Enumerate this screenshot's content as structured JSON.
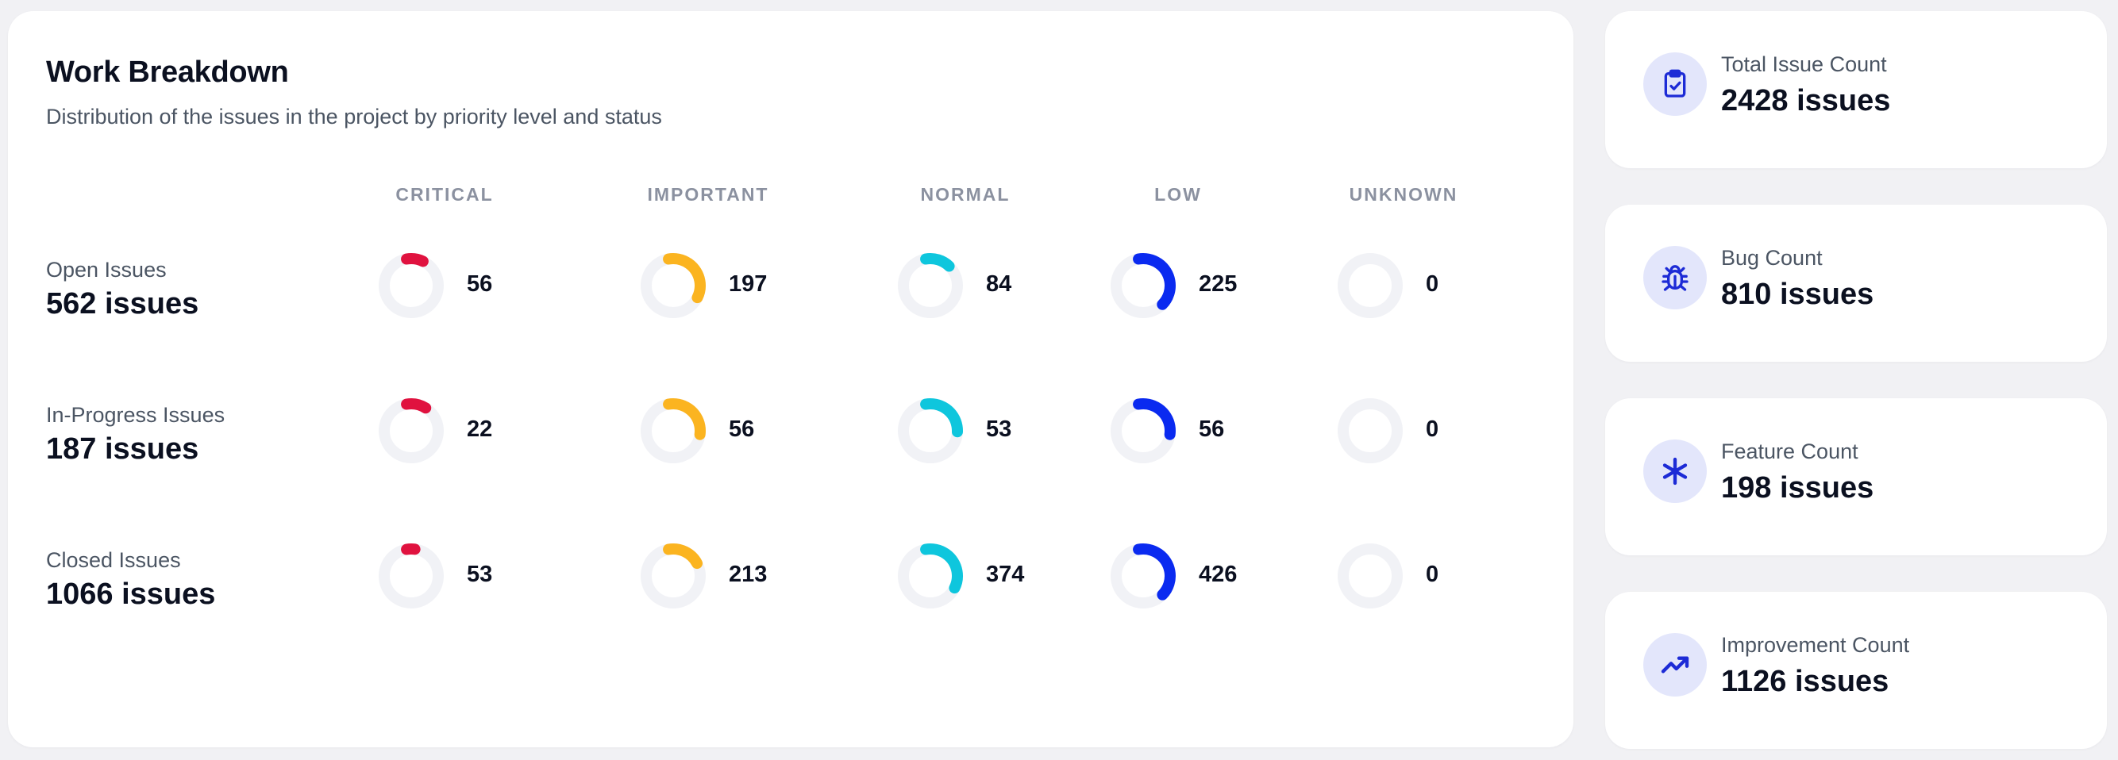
{
  "breakdown": {
    "title": "Work Breakdown",
    "subtitle": "Distribution of the issues in the project by priority level and status",
    "columns": [
      {
        "label": "CRITICAL",
        "color": "#e0123f"
      },
      {
        "label": "IMPORTANT",
        "color": "#fbb420"
      },
      {
        "label": "NORMAL",
        "color": "#0ec6dd"
      },
      {
        "label": "LOW",
        "color": "#0a2af0"
      },
      {
        "label": "UNKNOWN",
        "color": "#9ca3af"
      }
    ],
    "track_color": "#f1f2f6",
    "rows": [
      {
        "name": "Open Issues",
        "total": "562 issues",
        "counts": [
          "56",
          "197",
          "84",
          "225",
          "0"
        ],
        "values": [
          56,
          197,
          84,
          225,
          0
        ],
        "total_value": 562
      },
      {
        "name": "In-Progress Issues",
        "total": "187 issues",
        "counts": [
          "22",
          "56",
          "53",
          "56",
          "0"
        ],
        "values": [
          22,
          56,
          53,
          56,
          0
        ],
        "total_value": 187
      },
      {
        "name": "Closed Issues",
        "total": "1066 issues",
        "counts": [
          "53",
          "213",
          "374",
          "426",
          "0"
        ],
        "values": [
          53,
          213,
          374,
          426,
          0
        ],
        "total_value": 1066
      }
    ]
  },
  "stats": [
    {
      "label": "Total Issue Count",
      "value": "2428 issues",
      "icon": "clipboard-check-icon"
    },
    {
      "label": "Bug Count",
      "value": "810 issues",
      "icon": "bug-icon"
    },
    {
      "label": "Feature Count",
      "value": "198 issues",
      "icon": "asterisk-icon"
    },
    {
      "label": "Improvement Count",
      "value": "1126 issues",
      "icon": "trending-up-icon"
    }
  ],
  "accent_color": "#1d2bd6"
}
